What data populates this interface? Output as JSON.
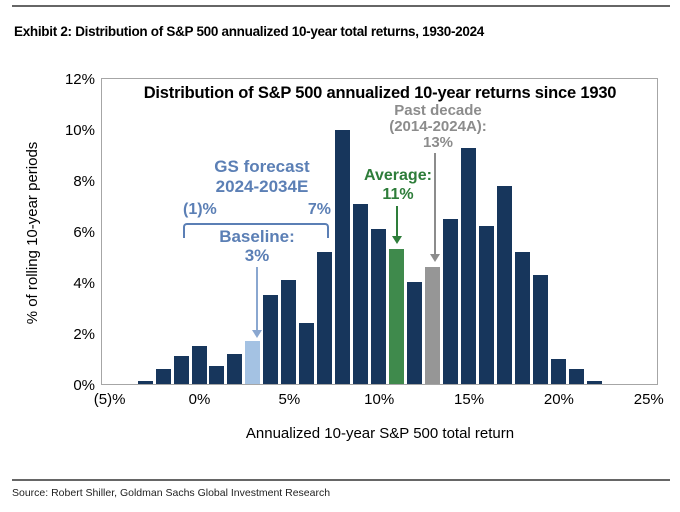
{
  "page": {
    "exhibit_title": "Exhibit 2: Distribution of S&P 500 annualized 10-year total returns, 1930-2024",
    "source_line": "Source: Robert Shiller, Goldman Sachs Global Investment Research"
  },
  "colors": {
    "bar_default": "#17365c",
    "bar_baseline": "#a4c2e3",
    "bar_average": "#3f8a4c",
    "bar_past_decade": "#969696",
    "forecast_annotation": "#5b7fb5",
    "forecast_arrow": "#8aa7d0",
    "average_annotation": "#2e7d3a",
    "past_decade_annotation": "#8c8c8c",
    "plot_border": "#a6a6a6",
    "rule": "#666666",
    "text": "#000000"
  },
  "chart_data": {
    "type": "bar",
    "title": "Distribution of S&P 500 annualized 10-year returns since 1930",
    "xlabel": "Annualized 10-year S&P 500 total return",
    "ylabel": "% of rolling 10-year periods",
    "x": [
      -3,
      -2,
      -1,
      0,
      1,
      2,
      3,
      4,
      5,
      6,
      7,
      8,
      9,
      10,
      11,
      12,
      13,
      14,
      15,
      16,
      17,
      18,
      19,
      20,
      21,
      22
    ],
    "values": [
      0.1,
      0.6,
      1.1,
      1.5,
      0.7,
      1.2,
      1.7,
      3.5,
      4.1,
      2.4,
      5.2,
      10.0,
      7.1,
      6.1,
      5.3,
      4.0,
      4.6,
      6.5,
      9.3,
      6.2,
      7.8,
      5.2,
      4.3,
      1.0,
      0.6,
      0.1
    ],
    "xlim": [
      -5,
      25
    ],
    "ylim": [
      0,
      12
    ],
    "grid": false,
    "legend": "none",
    "x_ticks": [
      {
        "v": -5,
        "label": "(5)%"
      },
      {
        "v": 0,
        "label": "0%"
      },
      {
        "v": 5,
        "label": "5%"
      },
      {
        "v": 10,
        "label": "10%"
      },
      {
        "v": 15,
        "label": "15%"
      },
      {
        "v": 20,
        "label": "20%"
      },
      {
        "v": 25,
        "label": "25%"
      }
    ],
    "y_ticks": [
      {
        "v": 0,
        "label": "0%"
      },
      {
        "v": 2,
        "label": "2%"
      },
      {
        "v": 4,
        "label": "4%"
      },
      {
        "v": 6,
        "label": "6%"
      },
      {
        "v": 8,
        "label": "8%"
      },
      {
        "v": 10,
        "label": "10%"
      },
      {
        "v": 12,
        "label": "12%"
      }
    ],
    "bar_color_overrides": {
      "3": "#a4c2e3",
      "11": "#3f8a4c",
      "13": "#969696"
    },
    "annotations": {
      "gs_forecast": {
        "title_line1": "GS forecast",
        "title_line2": "2024-2034E",
        "range_low": "(1)%",
        "range_high": "7%",
        "baseline_label": "Baseline:",
        "baseline_value": "3%",
        "points_to_x": 3
      },
      "average": {
        "label": "Average:",
        "value": "11%",
        "points_to_x": 11
      },
      "past_decade": {
        "line1": "Past decade",
        "line2": "(2014-2024A):",
        "line3": "13%",
        "points_to_x": 13
      }
    }
  }
}
